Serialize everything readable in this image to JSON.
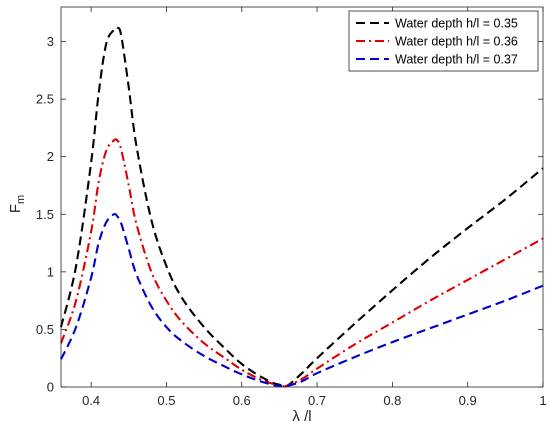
{
  "chart_data": {
    "type": "line",
    "title": "",
    "xlabel": "λ /l",
    "ylabel": "F",
    "ylabel_subscript": "m",
    "xlim": [
      0.36,
      1.0
    ],
    "ylim": [
      0,
      3.3
    ],
    "xticks": [
      0.4,
      0.5,
      0.6,
      0.7,
      0.8,
      0.9,
      1.0
    ],
    "xtick_labels": [
      "0.4",
      "0.5",
      "0.6",
      "0.7",
      "0.8",
      "0.9",
      "1"
    ],
    "yticks": [
      0,
      0.5,
      1.0,
      1.5,
      2.0,
      2.5,
      3.0
    ],
    "ytick_labels": [
      "0",
      "0.5",
      "1",
      "1.5",
      "2",
      "2.5",
      "3"
    ],
    "grid": false,
    "legend_position": "top-right",
    "series": [
      {
        "name": "Water depth h/l = 0.35",
        "color": "#000000",
        "dash": "dashed",
        "x": [
          0.36,
          0.38,
          0.4,
          0.41,
          0.42,
          0.43,
          0.435,
          0.44,
          0.45,
          0.46,
          0.48,
          0.5,
          0.52,
          0.55,
          0.58,
          0.6,
          0.62,
          0.64,
          0.65,
          0.66,
          0.68,
          0.7,
          0.75,
          0.8,
          0.85,
          0.9,
          0.95,
          1.0
        ],
        "y": [
          0.52,
          1.05,
          1.95,
          2.55,
          2.98,
          3.1,
          3.12,
          3.05,
          2.6,
          2.1,
          1.45,
          1.05,
          0.78,
          0.52,
          0.32,
          0.2,
          0.11,
          0.04,
          0.02,
          0.01,
          0.12,
          0.25,
          0.55,
          0.84,
          1.12,
          1.38,
          1.63,
          1.9
        ]
      },
      {
        "name": "Water depth h/l = 0.36",
        "color": "#e00000",
        "dash": "dashdot",
        "x": [
          0.36,
          0.38,
          0.4,
          0.41,
          0.42,
          0.43,
          0.435,
          0.44,
          0.45,
          0.46,
          0.48,
          0.5,
          0.52,
          0.55,
          0.58,
          0.6,
          0.62,
          0.64,
          0.65,
          0.66,
          0.68,
          0.7,
          0.75,
          0.8,
          0.85,
          0.9,
          0.95,
          1.0
        ],
        "y": [
          0.38,
          0.75,
          1.35,
          1.78,
          2.05,
          2.14,
          2.14,
          2.06,
          1.75,
          1.42,
          1.0,
          0.75,
          0.57,
          0.38,
          0.24,
          0.15,
          0.08,
          0.03,
          0.01,
          0.01,
          0.07,
          0.16,
          0.37,
          0.56,
          0.75,
          0.93,
          1.11,
          1.29
        ]
      },
      {
        "name": "Water depth h/l = 0.37",
        "color": "#0000cc",
        "dash": "dashed",
        "x": [
          0.36,
          0.38,
          0.4,
          0.41,
          0.42,
          0.43,
          0.435,
          0.44,
          0.45,
          0.46,
          0.48,
          0.5,
          0.52,
          0.55,
          0.58,
          0.6,
          0.62,
          0.64,
          0.65,
          0.66,
          0.68,
          0.7,
          0.75,
          0.8,
          0.85,
          0.9,
          0.95,
          1.0
        ],
        "y": [
          0.24,
          0.52,
          0.95,
          1.25,
          1.43,
          1.5,
          1.48,
          1.42,
          1.2,
          0.98,
          0.7,
          0.52,
          0.4,
          0.27,
          0.17,
          0.11,
          0.06,
          0.02,
          0.01,
          0.01,
          0.05,
          0.12,
          0.26,
          0.39,
          0.51,
          0.63,
          0.75,
          0.88
        ]
      }
    ]
  }
}
